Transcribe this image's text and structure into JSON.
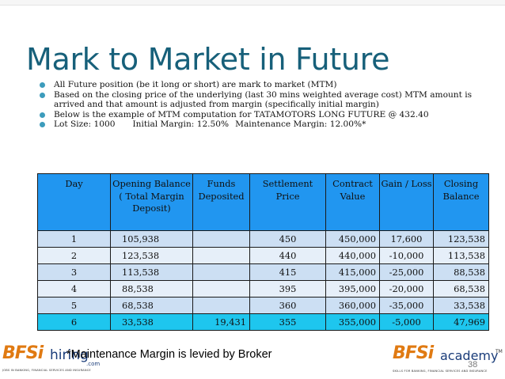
{
  "slide": {
    "title": "Mark to Market in Future",
    "page_number": "38"
  },
  "bullets": [
    "All Future position (be it long or short) are mark to market (MTM)",
    "Based on the closing price of the underlying (last 30 mins weighted average cost) MTM amount is arrived and that amount is adjusted from margin (specifically initial margin)",
    "Below is the example of MTM computation for TATAMOTORS LONG FUTURE @ 432.40"
  ],
  "lot_line": {
    "lot_size": "Lot Size: 1000",
    "initial_margin": "Initial Margin: 12.50%",
    "maintenance_margin": "Maintenance Margin: 12.00%*"
  },
  "table": {
    "headers": [
      "Day",
      "Opening Balance ( Total Margin Deposit)",
      "Funds Deposited",
      "Settlement Price",
      "Contract Value",
      "Gain / Loss",
      "Closing Balance"
    ],
    "rows": [
      [
        "1",
        "105,938",
        "",
        "450",
        "450,000",
        "17,600",
        "123,538"
      ],
      [
        "2",
        "123,538",
        "",
        "440",
        "440,000",
        "-10,000",
        "113,538"
      ],
      [
        "3",
        "113,538",
        "",
        "415",
        "415,000",
        "-25,000",
        "88,538"
      ],
      [
        "4",
        "88,538",
        "",
        "395",
        "395,000",
        "-20,000",
        "68,538"
      ],
      [
        "5",
        "68,538",
        "",
        "360",
        "360,000",
        "-35,000",
        "33,538"
      ],
      [
        "6",
        "33,538",
        "19,431",
        "355",
        "355,000",
        "-5,000",
        "47,969"
      ]
    ],
    "highlight_color": "#1ec6ee"
  },
  "footnote": "*Maintenance Margin is levied by Broker",
  "logos": {
    "left": {
      "brand": "BFSi",
      "product": "hiring",
      "suffix": ".com",
      "tagline": "JOBS IN BANKING, FINANCIAL SERVICES AND INSURANCE"
    },
    "right": {
      "brand": "BFSi",
      "product": "academy",
      "trademark": "TM",
      "tagline": "SKILLS FOR BANKING, FINANCIAL SERVICES AND INSURANCE"
    }
  },
  "colors": {
    "title": "#17607a",
    "bullet": "#3d9cbc",
    "header_fill": "#2196f0",
    "brand_orange": "#e07a12",
    "brand_navy": "#1b3d7a"
  }
}
